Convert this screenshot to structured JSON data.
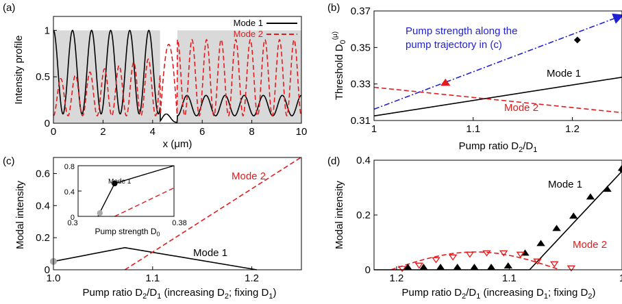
{
  "chart_data": [
    {
      "panel": "(a)",
      "type": "line",
      "xlabel": "x (μm)",
      "ylabel": "Intensity profile",
      "xlim": [
        0,
        10
      ],
      "ylim": [
        0,
        1.15
      ],
      "xticks": [
        "0",
        "2",
        "4",
        "6",
        "8",
        "10"
      ],
      "yticks": [
        "0",
        "0.5",
        "1"
      ],
      "shaded_regions": [
        [
          0,
          4.3
        ],
        [
          5,
          10
        ]
      ],
      "shaded_level": 1,
      "shade_color": "#d9d9d9",
      "series": [
        {
          "name": "Mode 1",
          "color": "#000000",
          "style": "solid",
          "periods": 13,
          "min": 0.1,
          "max": 1.0,
          "outside_max": 0.3
        },
        {
          "name": "Mode 2",
          "color": "#e41a1c",
          "style": "dashed",
          "periods": 17,
          "min": 0.08,
          "max": 0.72,
          "outside_max": 0.9
        }
      ]
    },
    {
      "panel": "(b)",
      "type": "line",
      "xlabel": "Pump ratio D2/D1",
      "ylabel": "Threshold D0(μ)",
      "xlim": [
        1.0,
        1.25
      ],
      "ylim": [
        0.31,
        0.37
      ],
      "xticks": [
        "1",
        "1.1",
        "1.2"
      ],
      "yticks": [
        "0.31",
        "0.33",
        "0.35",
        "0.37"
      ],
      "series": [
        {
          "name": "Mode 1",
          "color": "#000000",
          "style": "solid",
          "x": [
            1.0,
            1.25
          ],
          "y": [
            0.3125,
            0.3337
          ]
        },
        {
          "name": "Mode 2",
          "color": "#e41a1c",
          "style": "dashed",
          "x": [
            1.0,
            1.25
          ],
          "y": [
            0.3282,
            0.3143
          ]
        },
        {
          "name": "Pump strength along the pump trajectory in (c)",
          "color": "#1f1fd6",
          "style": "dashdot",
          "x": [
            1.0,
            1.25
          ],
          "y": [
            0.3162,
            0.3685
          ]
        }
      ],
      "markers": [
        {
          "shape": "triangle",
          "color": "#e41a1c",
          "x": 1.072,
          "y": 0.3305
        },
        {
          "shape": "diamond",
          "color": "#000000",
          "x": 1.205,
          "y": 0.3541
        }
      ],
      "annotations": [
        "Pump strength along the",
        "pump trajectory in (c)",
        "Mode 1",
        "Mode 2"
      ]
    },
    {
      "panel": "(c)",
      "type": "line",
      "xlabel": "Pump ratio D2/D1 (increasing D2; fixing D1)",
      "ylabel": "Modal intensity",
      "xlim": [
        1.0,
        1.25
      ],
      "ylim": [
        0,
        0.7
      ],
      "xticks": [
        "1.0",
        "1.1",
        "1.2"
      ],
      "yticks": [
        "0",
        "0.2",
        "0.4",
        "0.6"
      ],
      "series": [
        {
          "name": "Mode 1",
          "color": "#000000",
          "style": "solid",
          "x": [
            1.0,
            1.072,
            1.205
          ],
          "y": [
            0.052,
            0.138,
            0.0
          ]
        },
        {
          "name": "Mode 2",
          "color": "#e41a1c",
          "style": "dashed",
          "x": [
            1.072,
            1.25
          ],
          "y": [
            0.0,
            0.702
          ]
        }
      ],
      "markers": [
        {
          "shape": "circle",
          "color": "#aaaaaa",
          "x": 1.0,
          "y": 0.052
        }
      ],
      "inset": {
        "xlabel": "Pump strength D0",
        "xlim": [
          0.3,
          0.38
        ],
        "ylim": [
          0,
          0.8
        ],
        "xticks": [
          "0.3",
          "0.38"
        ],
        "yticks": [
          "0",
          "0.4",
          "0.8"
        ],
        "series": [
          {
            "name": "Mode 1",
            "color": "#000000",
            "style": "solid",
            "x": [
              0.3165,
              0.3305,
              0.38
            ],
            "y": [
              0.0,
              0.52,
              0.86
            ]
          },
          {
            "name": "Mode 2",
            "color": "#e41a1c",
            "style": "dashed",
            "x": [
              0.3305,
              0.38
            ],
            "y": [
              0.0,
              0.45
            ]
          }
        ],
        "markers": [
          {
            "shape": "circle",
            "color": "#aaaaaa",
            "x": 0.3182,
            "y": 0.052
          },
          {
            "shape": "circle",
            "color": "#000000",
            "x": 0.3305,
            "y": 0.52
          }
        ],
        "label": "Mode 1"
      }
    },
    {
      "panel": "(d)",
      "type": "line",
      "xlabel": "Pump ratio D2/D1 (increasing D1; fixing D2)",
      "ylabel": "Modal intensity",
      "xlim": [
        1.22,
        1.0
      ],
      "ylim": [
        0,
        0.4
      ],
      "xticks": [
        "1.2",
        "1.1",
        "1"
      ],
      "yticks": [
        "0",
        "0.2",
        "0.4"
      ],
      "series": [
        {
          "name": "Mode 1",
          "color": "#000000",
          "style": "solid",
          "x": [
            1.22,
            1.082,
            1.0
          ],
          "y": [
            0.0,
            0.0,
            0.36
          ]
        },
        {
          "name": "Mode 2",
          "color": "#e41a1c",
          "style": "dashed",
          "x": [
            1.205,
            1.17,
            1.13,
            1.09,
            1.055
          ],
          "y": [
            0.0,
            0.04,
            0.065,
            0.04,
            0.0
          ]
        }
      ],
      "scatter": [
        {
          "name": "Mode 1",
          "shape": "triangle-up",
          "color": "#000000",
          "x": [
            1.0,
            1.013,
            1.028,
            1.043,
            1.058,
            1.072,
            1.086,
            1.101,
            1.116,
            1.131,
            1.146,
            1.161,
            1.176,
            1.19
          ],
          "y": [
            0.365,
            0.288,
            0.26,
            0.19,
            0.145,
            0.09,
            0.055,
            0.008,
            0.003,
            0.003,
            0.003,
            0.003,
            0.003,
            0.003
          ]
        },
        {
          "name": "Mode 2",
          "shape": "triangle-down",
          "color": "#e41a1c",
          "x": [
            1.045,
            1.06,
            1.075,
            1.09,
            1.105,
            1.12,
            1.135,
            1.15,
            1.165,
            1.18,
            1.195
          ],
          "y": [
            0.005,
            0.02,
            0.03,
            0.055,
            0.06,
            0.06,
            0.055,
            0.045,
            0.035,
            0.015,
            0.003
          ]
        }
      ]
    }
  ],
  "labels": {
    "panel_a": "(a)",
    "panel_b": "(b)",
    "panel_c": "(c)",
    "panel_d": "(d)",
    "legend_mode1": "Mode 1",
    "legend_mode2": "Mode 2",
    "b_blue_line1": "Pump strength along the",
    "b_blue_line2": "pump trajectory in (c)",
    "b_mode1": "Mode 1",
    "b_mode2": "Mode 2",
    "c_mode1": "Mode 1",
    "c_mode2": "Mode 2",
    "c_inset_mode1": "Mode 1",
    "d_mode1": "Mode 1",
    "d_mode2": "Mode 2"
  }
}
